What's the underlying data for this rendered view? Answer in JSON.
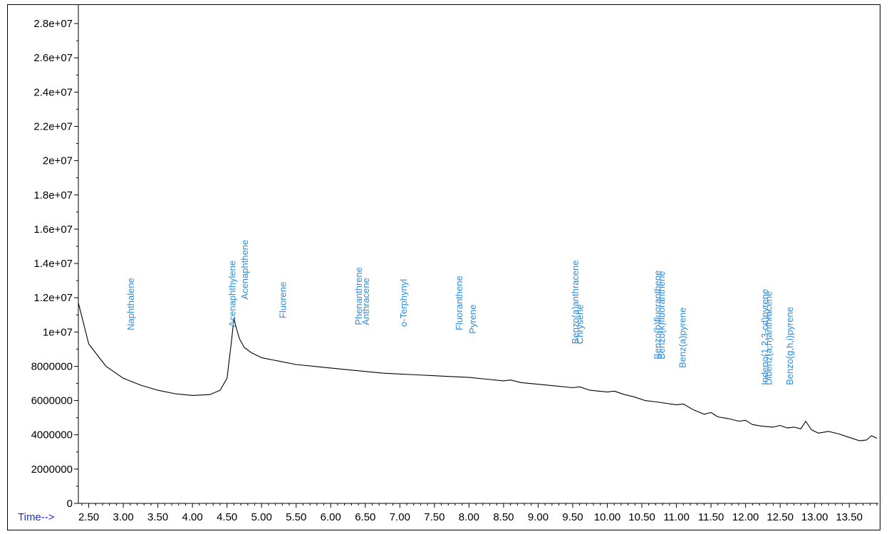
{
  "chart_data": {
    "type": "line",
    "xlabel": "Time-->",
    "ylabel": "",
    "xlim": [
      2.35,
      13.92
    ],
    "ylim": [
      0,
      29000000
    ],
    "y_ticks": [
      0,
      2000000,
      4000000,
      6000000,
      8000000,
      "1e+07",
      "1.2e+07",
      "1.4e+07",
      "1.6e+07",
      "1.8e+07",
      "2e+07",
      "2.2e+07",
      "2.4e+07",
      "2.6e+07",
      "2.8e+07"
    ],
    "y_tick_values": [
      0,
      2000000,
      4000000,
      6000000,
      8000000,
      10000000,
      12000000,
      14000000,
      16000000,
      18000000,
      20000000,
      22000000,
      24000000,
      26000000,
      28000000
    ],
    "x_ticks": [
      "2.50",
      "3.00",
      "3.50",
      "4.00",
      "4.50",
      "5.00",
      "5.50",
      "6.00",
      "6.50",
      "7.00",
      "7.50",
      "8.00",
      "8.50",
      "9.00",
      "9.50",
      "10.00",
      "10.50",
      "11.00",
      "11.50",
      "12.00",
      "12.50",
      "13.00",
      "13.50"
    ],
    "grid": false,
    "series": [
      {
        "color": "#000000",
        "x": [
          2.35,
          2.5,
          2.75,
          3.0,
          3.25,
          3.5,
          3.75,
          4.0,
          4.25,
          4.4,
          4.5,
          4.56,
          4.6,
          4.63,
          4.68,
          4.75,
          4.85,
          5.0,
          5.25,
          5.5,
          5.75,
          6.0,
          6.25,
          6.5,
          6.75,
          7.0,
          7.25,
          7.5,
          7.75,
          8.0,
          8.25,
          8.5,
          8.6,
          8.75,
          9.0,
          9.25,
          9.5,
          9.6,
          9.75,
          10.0,
          10.1,
          10.25,
          10.4,
          10.55,
          10.75,
          11.0,
          11.1,
          11.25,
          11.4,
          11.5,
          11.6,
          11.75,
          11.9,
          12.0,
          12.1,
          12.25,
          12.4,
          12.5,
          12.6,
          12.7,
          12.8,
          12.87,
          12.95,
          13.05,
          13.2,
          13.35,
          13.5,
          13.65,
          13.75,
          13.82,
          13.9
        ],
        "y": [
          11700000,
          9300000,
          8000000,
          7300000,
          6900000,
          6600000,
          6400000,
          6300000,
          6350000,
          6600000,
          7300000,
          9300000,
          10800000,
          10300000,
          9600000,
          9100000,
          8800000,
          8500000,
          8300000,
          8100000,
          8000000,
          7900000,
          7800000,
          7700000,
          7600000,
          7550000,
          7500000,
          7450000,
          7400000,
          7350000,
          7250000,
          7150000,
          7200000,
          7050000,
          6950000,
          6850000,
          6750000,
          6800000,
          6600000,
          6500000,
          6550000,
          6350000,
          6200000,
          6000000,
          5900000,
          5750000,
          5800000,
          5450000,
          5200000,
          5300000,
          5050000,
          4950000,
          4800000,
          4850000,
          4600000,
          4500000,
          4450000,
          4550000,
          4400000,
          4450000,
          4350000,
          4800000,
          4300000,
          4100000,
          4200000,
          4050000,
          3850000,
          3650000,
          3700000,
          3950000,
          3800000
        ]
      }
    ],
    "peak_labels": [
      {
        "text": "Naphthalene",
        "x": 3.1,
        "y": 10100000
      },
      {
        "text": "Acenaphthylene",
        "x": 4.57,
        "y": 10300000
      },
      {
        "text": "Acenaphthene",
        "x": 4.75,
        "y": 11900000
      },
      {
        "text": "Fluorene",
        "x": 5.3,
        "y": 10800000
      },
      {
        "text": "Phenanthrene",
        "x": 6.4,
        "y": 10400000
      },
      {
        "text": "Anthracene",
        "x": 6.5,
        "y": 10400000
      },
      {
        "text": "o-Terphynyl",
        "x": 7.05,
        "y": 10300000
      },
      {
        "text": "Fluoranthene",
        "x": 7.85,
        "y": 10100000
      },
      {
        "text": "Pyrene",
        "x": 8.05,
        "y": 9900000
      },
      {
        "text": "Benzo(a)anthracene",
        "x": 9.53,
        "y": 9300000
      },
      {
        "text": "Chrysene",
        "x": 9.6,
        "y": 9300000
      },
      {
        "text": "Benzo(b)fluoranthene",
        "x": 10.72,
        "y": 8400000
      },
      {
        "text": "Benzo(k)fluoranthene",
        "x": 10.78,
        "y": 8400000
      },
      {
        "text": "Benz(a)pyrene",
        "x": 11.08,
        "y": 7900000
      },
      {
        "text": "Indeno(1,2,3-cd)pyrene",
        "x": 12.27,
        "y": 6900000
      },
      {
        "text": "Dibenz(a,h)anthracene",
        "x": 12.33,
        "y": 6900000
      },
      {
        "text": "Benzo(g,h,i)pyrene",
        "x": 12.63,
        "y": 6900000
      }
    ]
  }
}
